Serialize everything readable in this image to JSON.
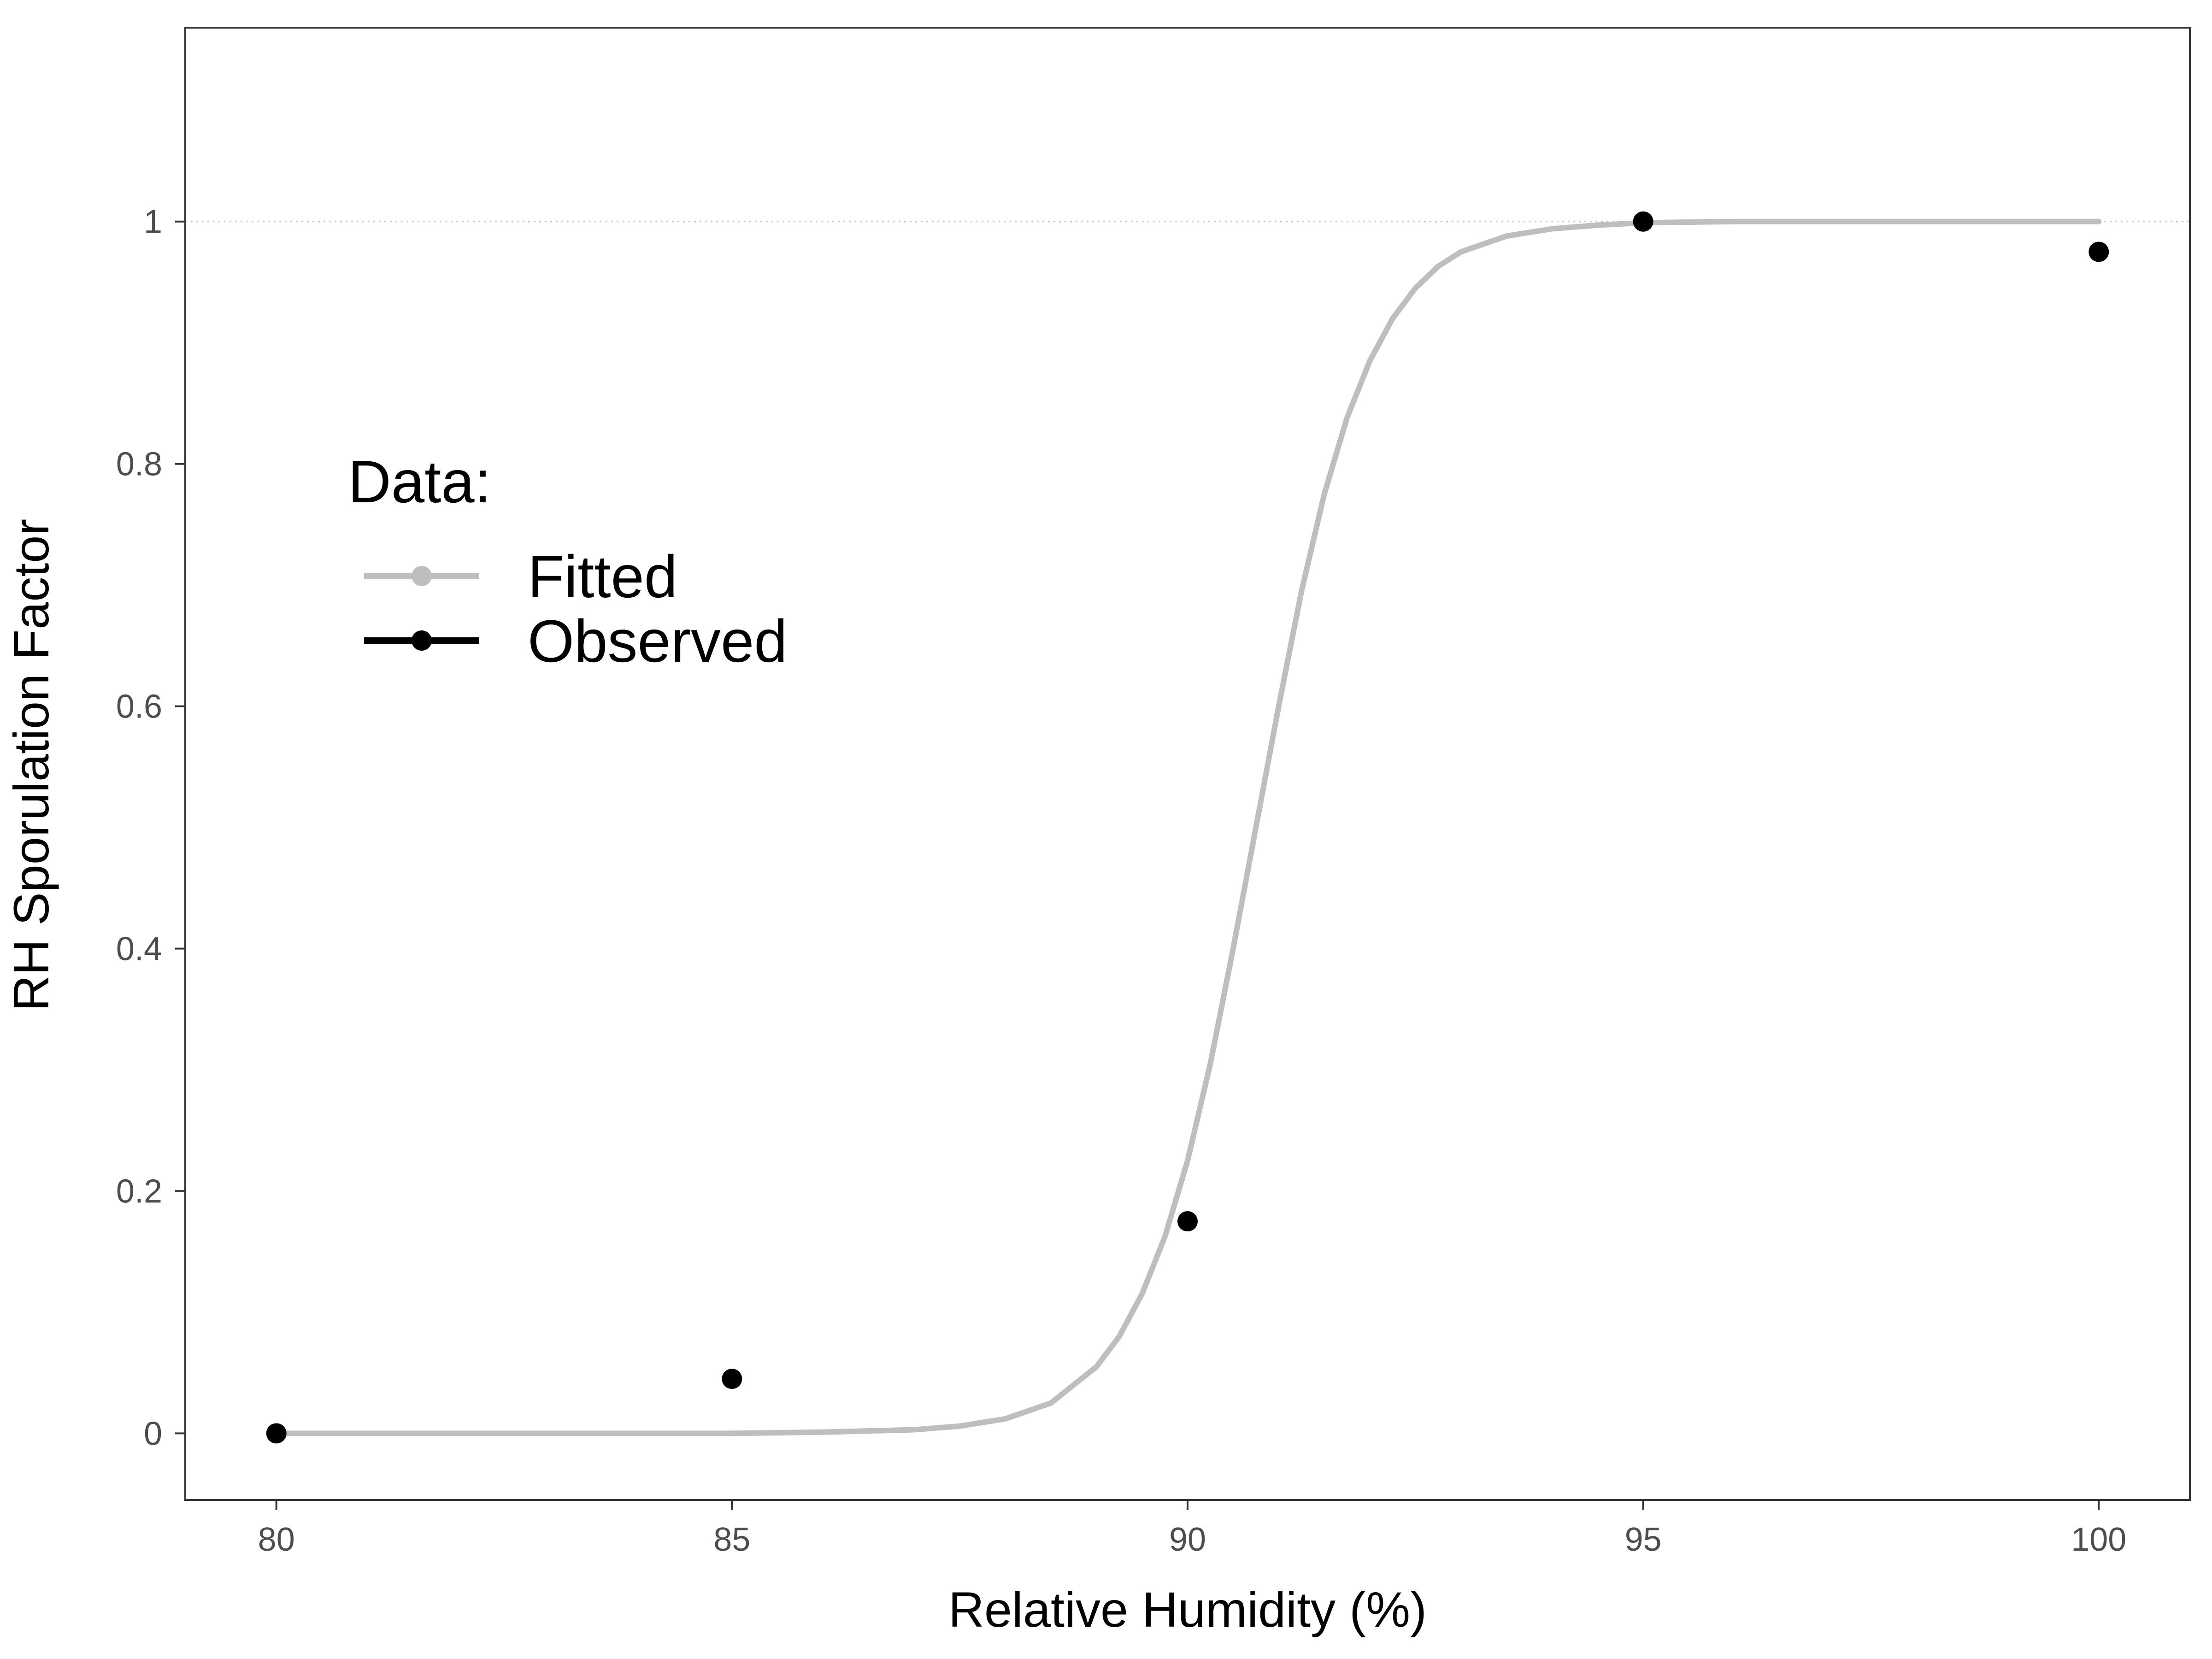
{
  "chart_data": {
    "type": "line",
    "xlabel": "Relative Humidity (%)",
    "ylabel": "RH Sporulation Factor",
    "xlim": [
      79,
      101
    ],
    "ylim": [
      -0.055,
      1.16
    ],
    "x_ticks": [
      80,
      85,
      90,
      95,
      100
    ],
    "y_ticks": [
      0,
      0.2,
      0.4,
      0.6,
      0.8,
      1
    ],
    "x_tick_labels": [
      "80",
      "85",
      "90",
      "95",
      "100"
    ],
    "y_tick_labels": [
      "0",
      "0.2",
      "0.4",
      "0.6",
      "0.8",
      "1"
    ],
    "reference_line_y": 1,
    "grid": false,
    "legend": {
      "title": "Data:",
      "position": "left-middle",
      "entries": [
        "Fitted",
        "Observed"
      ]
    },
    "series": [
      {
        "name": "Fitted",
        "color": "#bebebe",
        "x": [
          80,
          81,
          82,
          83,
          84,
          85,
          86,
          87,
          87.5,
          88,
          88.5,
          89,
          89.25,
          89.5,
          89.75,
          90,
          90.25,
          90.5,
          90.75,
          91,
          91.25,
          91.5,
          91.75,
          92,
          92.25,
          92.5,
          92.75,
          93,
          93.5,
          94,
          94.5,
          95,
          96,
          97,
          98,
          99,
          100
        ],
        "y": [
          0,
          0,
          0,
          0,
          0,
          0,
          0.001,
          0.003,
          0.006,
          0.012,
          0.025,
          0.055,
          0.08,
          0.115,
          0.162,
          0.225,
          0.305,
          0.4,
          0.5,
          0.6,
          0.695,
          0.775,
          0.838,
          0.885,
          0.92,
          0.945,
          0.963,
          0.975,
          0.988,
          0.994,
          0.997,
          0.999,
          1,
          1,
          1,
          1,
          1
        ]
      },
      {
        "name": "Observed",
        "color": "#000000",
        "x": [
          80,
          85,
          90,
          95,
          100
        ],
        "y": [
          0,
          0.045,
          0.175,
          1,
          0.975
        ]
      }
    ]
  }
}
